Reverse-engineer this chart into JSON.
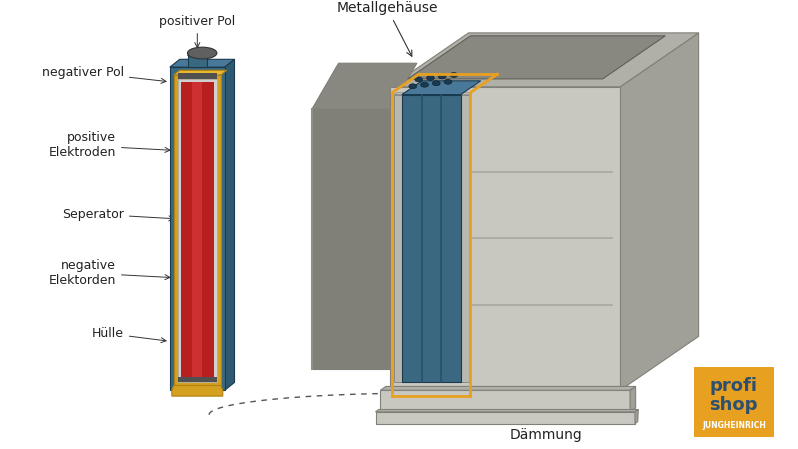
{
  "bg_color": "#ffffff",
  "labels": {
    "positiver_pol": "positiver Pol",
    "negativer_pol": "negativer Pol",
    "positive_elektroden": "positive\nElektroden",
    "seperator": "Seperator",
    "negative_elektroden": "negative\nElektorden",
    "huelle": "Hülle",
    "metallgehaeuse": "Metallgehäuse",
    "daemmung": "Dämmung"
  },
  "cell_colors": {
    "outer_blue": "#3a6880",
    "outer_blue_dark": "#2a5060",
    "outer_blue_top": "#4a7898",
    "outer_blue_side": "#2d5a70",
    "gold": "#d4a020",
    "gold_light": "#e8b830",
    "gold_dark": "#b08010",
    "inner_red": "#b82020",
    "inner_red_light": "#cc3030",
    "white_sep": "#d0d0d0",
    "pole_gray": "#606060",
    "pole_light": "#888888"
  },
  "battery_colors": {
    "body_light": "#c8c8c0",
    "body_mid": "#aaaaA0",
    "body_dark": "#888880",
    "body_darker": "#707068",
    "left_dark": "#808078",
    "blue_panel": "#3a6880",
    "blue_panel_dark": "#2a5068",
    "blue_top": "#4a7898",
    "orange": "#e8a020",
    "top_face": "#b0b0a8",
    "right_face": "#a0a098"
  },
  "logo": {
    "bg": "#e8a020",
    "profi_color": "#2d5070",
    "shop_color": "#2d5070",
    "brand_color": "#ffffff"
  },
  "font_size_label": 9,
  "font_size_logo": 13,
  "font_size_brand": 5.5
}
